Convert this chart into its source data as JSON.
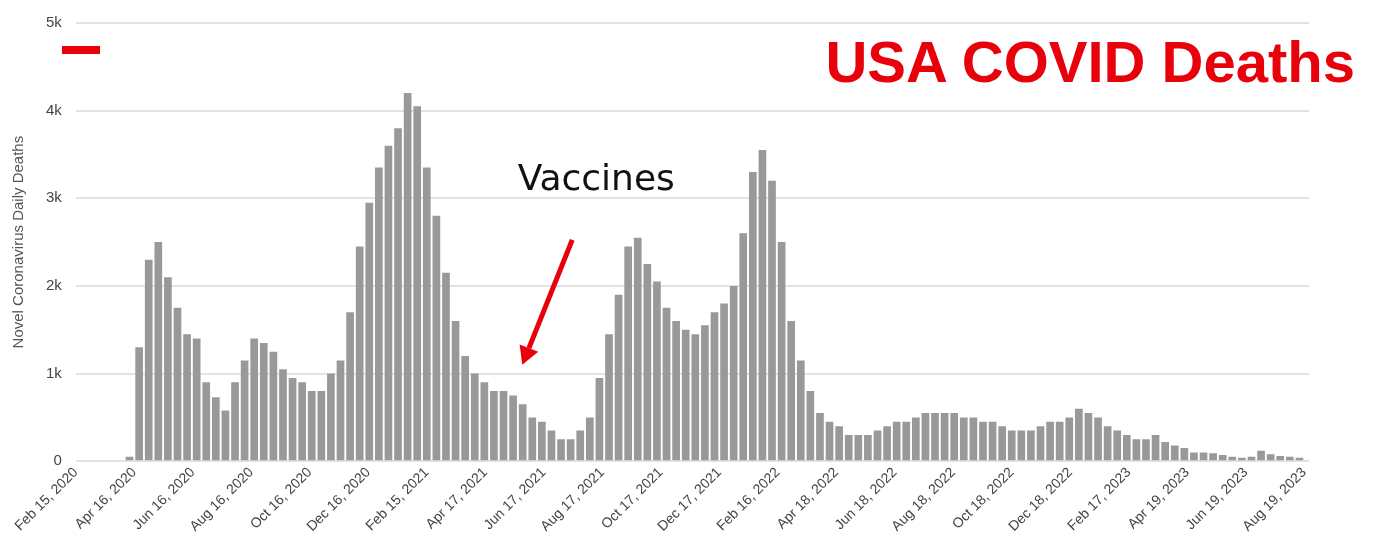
{
  "chart_data": {
    "type": "bar",
    "title": "USA COVID Deaths",
    "ylabel": "Novel Coronavirus Daily Deaths",
    "color": "#999999",
    "grid": "y",
    "x": [
      "2020-04-11",
      "2020-04-21",
      "2020-05-01",
      "2020-05-11",
      "2020-05-21",
      "2020-05-31",
      "2020-06-10",
      "2020-06-20",
      "2020-06-30",
      "2020-07-10",
      "2020-07-20",
      "2020-07-30",
      "2020-08-09",
      "2020-08-19",
      "2020-08-29",
      "2020-09-08",
      "2020-09-18",
      "2020-09-28",
      "2020-10-08",
      "2020-10-18",
      "2020-10-28",
      "2020-11-07",
      "2020-11-17",
      "2020-11-27",
      "2020-12-07",
      "2020-12-17",
      "2020-12-27",
      "2021-01-06",
      "2021-01-16",
      "2021-01-26",
      "2021-02-05",
      "2021-02-15",
      "2021-02-25",
      "2021-03-07",
      "2021-03-17",
      "2021-03-27",
      "2021-04-06",
      "2021-04-16",
      "2021-04-26",
      "2021-05-06",
      "2021-05-16",
      "2021-05-26",
      "2021-06-05",
      "2021-06-15",
      "2021-06-25",
      "2021-07-05",
      "2021-07-15",
      "2021-07-25",
      "2021-08-04",
      "2021-08-14",
      "2021-08-24",
      "2021-09-03",
      "2021-09-13",
      "2021-09-23",
      "2021-10-03",
      "2021-10-13",
      "2021-10-23",
      "2021-11-02",
      "2021-11-12",
      "2021-11-22",
      "2021-12-02",
      "2021-12-12",
      "2021-12-22",
      "2022-01-01",
      "2022-01-11",
      "2022-01-21",
      "2022-01-31",
      "2022-02-10",
      "2022-02-20",
      "2022-03-02",
      "2022-03-12",
      "2022-03-22",
      "2022-04-01",
      "2022-04-11",
      "2022-04-21",
      "2022-05-01",
      "2022-05-11",
      "2022-05-21",
      "2022-05-31",
      "2022-06-10",
      "2022-06-20",
      "2022-06-30",
      "2022-07-10",
      "2022-07-20",
      "2022-07-30",
      "2022-08-09",
      "2022-08-19",
      "2022-08-29",
      "2022-09-08",
      "2022-09-18",
      "2022-09-28",
      "2022-10-08",
      "2022-10-18",
      "2022-10-28",
      "2022-11-07",
      "2022-11-17",
      "2022-11-27",
      "2022-12-07",
      "2022-12-17",
      "2022-12-27",
      "2023-01-06",
      "2023-01-16",
      "2023-01-26",
      "2023-02-05",
      "2023-02-15",
      "2023-02-25",
      "2023-03-07",
      "2023-03-17",
      "2023-03-27",
      "2023-04-06",
      "2023-04-16",
      "2023-04-26",
      "2023-05-06",
      "2023-05-16",
      "2023-05-26",
      "2023-06-05",
      "2023-06-15",
      "2023-06-25",
      "2023-07-05",
      "2023-07-15",
      "2023-07-25",
      "2023-08-04",
      "2023-08-14"
    ],
    "values": [
      50,
      1300,
      2300,
      2500,
      2100,
      1750,
      1450,
      1400,
      900,
      730,
      580,
      900,
      1150,
      1400,
      1350,
      1250,
      1050,
      950,
      900,
      800,
      800,
      1000,
      1150,
      1700,
      2450,
      2950,
      3350,
      3600,
      3800,
      4200,
      4050,
      3350,
      2800,
      2150,
      1600,
      1200,
      1000,
      900,
      800,
      800,
      750,
      650,
      500,
      450,
      350,
      250,
      250,
      350,
      500,
      950,
      1450,
      1900,
      2450,
      2550,
      2250,
      2050,
      1750,
      1600,
      1500,
      1450,
      1550,
      1700,
      1800,
      2000,
      2600,
      3300,
      3550,
      3200,
      2500,
      1600,
      1150,
      800,
      550,
      450,
      400,
      300,
      300,
      300,
      350,
      400,
      450,
      450,
      500,
      550,
      550,
      550,
      550,
      500,
      500,
      450,
      450,
      400,
      350,
      350,
      350,
      400,
      450,
      450,
      500,
      600,
      550,
      500,
      400,
      350,
      300,
      250,
      250,
      300,
      220,
      180,
      150,
      100,
      100,
      90,
      70,
      50,
      40,
      50,
      120,
      80,
      60,
      50,
      40
    ],
    "xlim": [
      "2020-02-15",
      "2023-08-24"
    ],
    "xticks": [
      {
        "value": "2020-02-15",
        "label": "Feb 15, 2020"
      },
      {
        "value": "2020-04-16",
        "label": "Apr 16, 2020"
      },
      {
        "value": "2020-06-16",
        "label": "Jun 16, 2020"
      },
      {
        "value": "2020-08-16",
        "label": "Aug 16, 2020"
      },
      {
        "value": "2020-10-16",
        "label": "Oct 16, 2020"
      },
      {
        "value": "2020-12-16",
        "label": "Dec 16, 2020"
      },
      {
        "value": "2021-02-15",
        "label": "Feb 15, 2021"
      },
      {
        "value": "2021-04-17",
        "label": "Apr 17, 2021"
      },
      {
        "value": "2021-06-17",
        "label": "Jun 17, 2021"
      },
      {
        "value": "2021-08-17",
        "label": "Aug 17, 2021"
      },
      {
        "value": "2021-10-17",
        "label": "Oct 17, 2021"
      },
      {
        "value": "2021-12-17",
        "label": "Dec 17, 2021"
      },
      {
        "value": "2022-02-16",
        "label": "Feb 16, 2022"
      },
      {
        "value": "2022-04-18",
        "label": "Apr 18, 2022"
      },
      {
        "value": "2022-06-18",
        "label": "Jun 18, 2022"
      },
      {
        "value": "2022-08-18",
        "label": "Aug 18, 2022"
      },
      {
        "value": "2022-10-18",
        "label": "Oct 18, 2022"
      },
      {
        "value": "2022-12-18",
        "label": "Dec 18, 2022"
      },
      {
        "value": "2023-02-17",
        "label": "Feb 17, 2023"
      },
      {
        "value": "2023-04-19",
        "label": "Apr 19, 2023"
      },
      {
        "value": "2023-06-19",
        "label": "Jun 19, 2023"
      },
      {
        "value": "2023-08-19",
        "label": "Aug 19, 2023"
      }
    ],
    "ylim": [
      0,
      5000
    ],
    "yticks": [
      0,
      {
        "value": 1000,
        "label": "1k"
      },
      {
        "value": 2000,
        "label": "2k"
      },
      {
        "value": 3000,
        "label": "3k"
      },
      {
        "value": 4000,
        "label": "4k"
      },
      {
        "value": 5000,
        "label": "5k"
      }
    ],
    "annotations": [
      "Vaccines"
    ]
  }
}
